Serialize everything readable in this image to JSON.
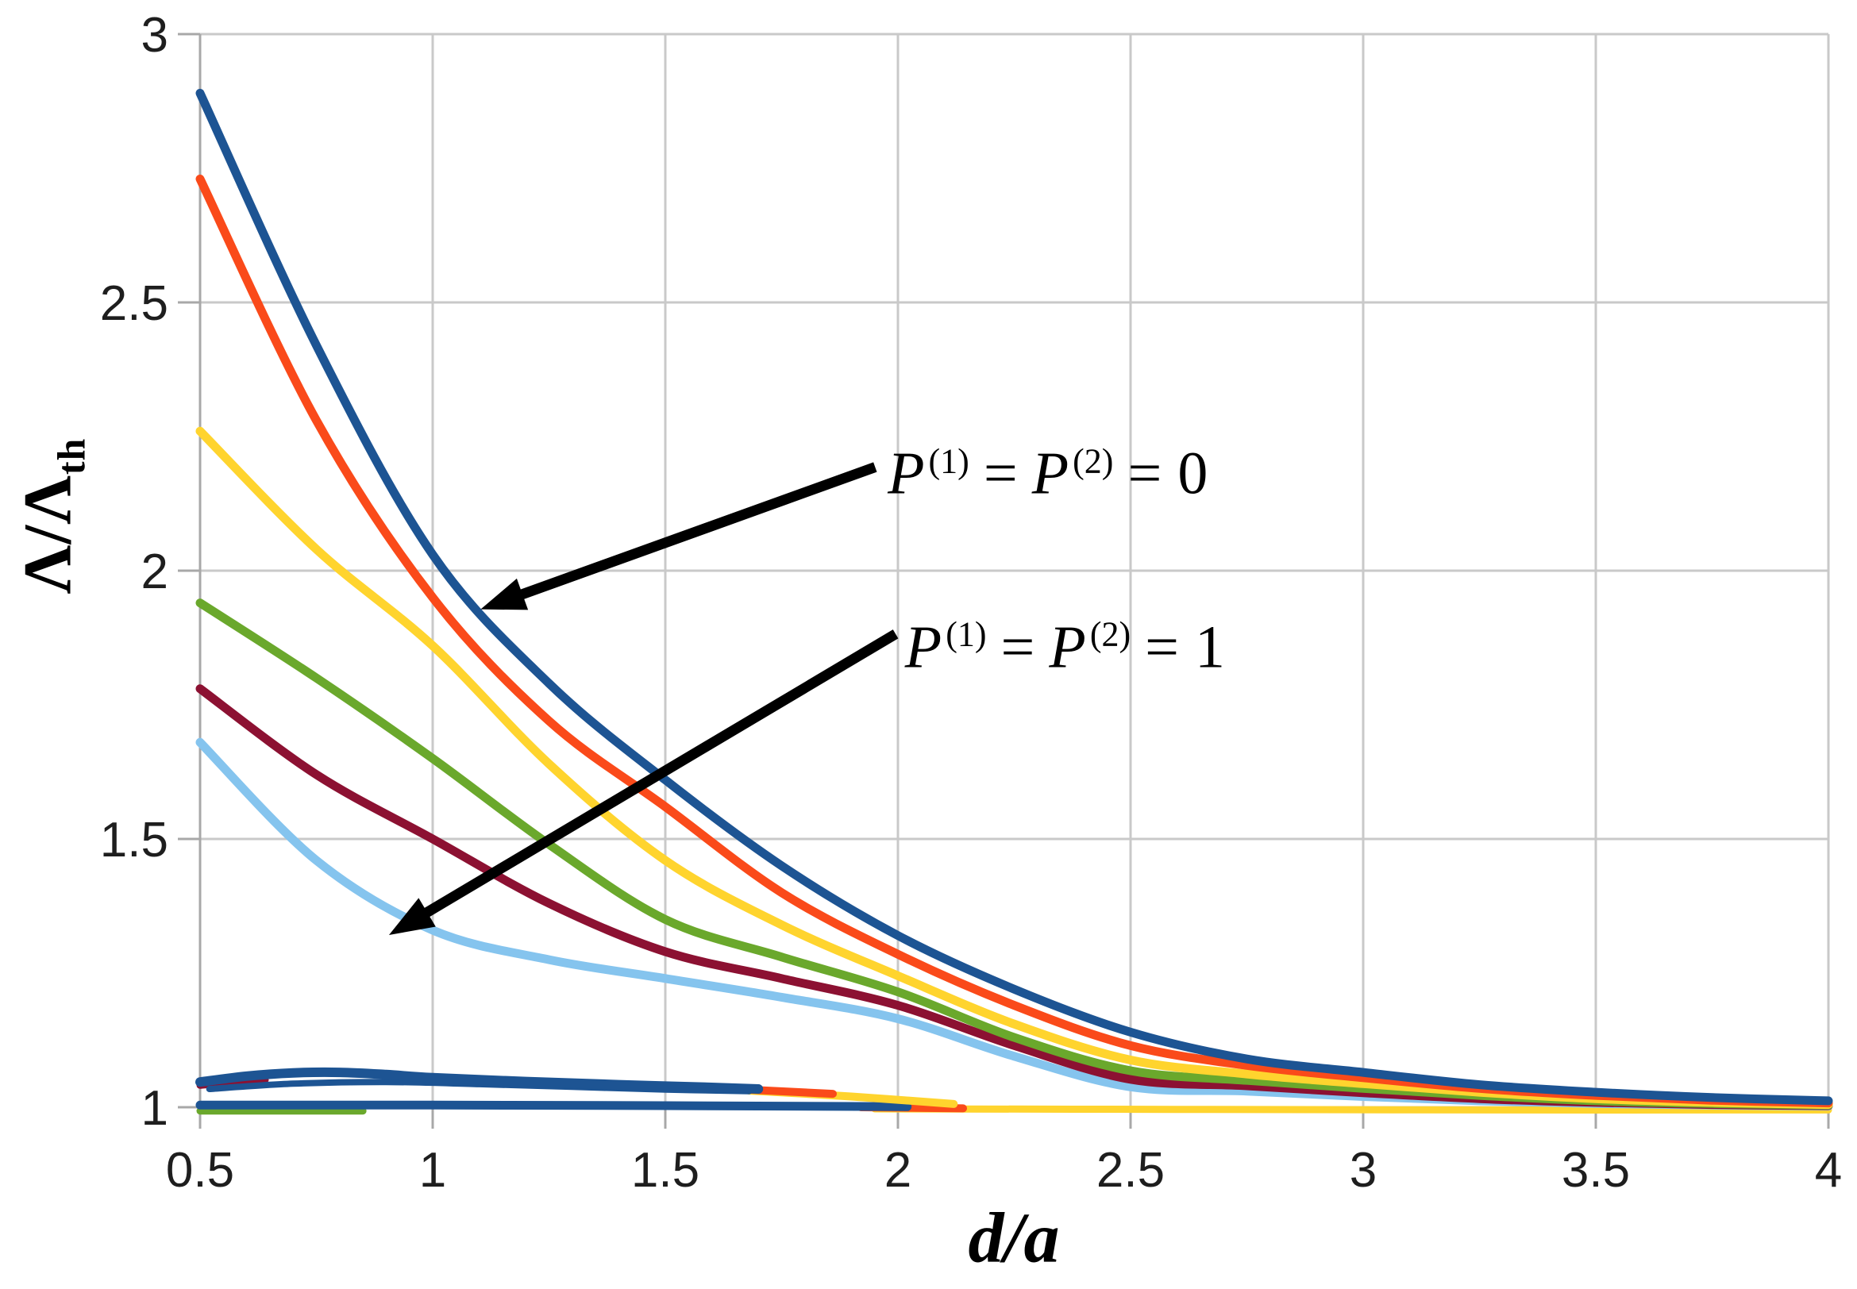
{
  "figure": {
    "background": "#ffffff",
    "description": "Line chart of normalized pump rate Lambda/Lambda_th versus d/a for two parameter families"
  },
  "axes": {
    "x": {
      "label": "d/a",
      "range": [
        0.5,
        4
      ],
      "ticks": [
        0.5,
        1,
        1.5,
        2,
        2.5,
        3,
        3.5,
        4
      ],
      "tick_labels": [
        "0.5",
        "1",
        "1.5",
        "2",
        "2.5",
        "3",
        "3.5",
        "4"
      ]
    },
    "y": {
      "label_main": "Λ/Λ",
      "label_sub": "th",
      "range": [
        1,
        3
      ],
      "ticks": [
        1,
        1.5,
        2,
        2.5,
        3
      ],
      "tick_labels": [
        "1",
        "1.5",
        "2",
        "2.5",
        "3"
      ]
    }
  },
  "palette": {
    "blue": "#1D5493",
    "orange": "#FA4A1A",
    "yellow": "#FFD42E",
    "green": "#6AA82C",
    "darkred": "#8C1132",
    "lightblue": "#85C4EE",
    "grid": "#C9C9C9",
    "axis": "#A8A8A8",
    "tick_text": "#1E1E1E",
    "arrow": "#000000"
  },
  "chart_data": {
    "type": "line",
    "title": "",
    "xlabel": "d/a",
    "ylabel": "Λ/Λ_th",
    "x_range": [
      0.5,
      4
    ],
    "y_range": [
      1,
      3
    ],
    "grid": true,
    "legend": "none",
    "x_samples": [
      0.5,
      0.75,
      1.0,
      1.25,
      1.5,
      1.75,
      2.0,
      2.25,
      2.5,
      2.75,
      3.0,
      3.25,
      3.5,
      3.75,
      4.0
    ],
    "series": [
      {
        "name": "P0-lightblue",
        "family": "P(1)=P(2)=0",
        "color": "lightblue",
        "width": 11,
        "values": [
          1.68,
          1.46,
          1.33,
          1.275,
          1.24,
          1.205,
          1.165,
          1.095,
          1.038,
          1.03,
          1.02,
          1.012,
          1.007,
          1.004,
          1.002
        ]
      },
      {
        "name": "P0-darkred",
        "family": "P(1)=P(2)=0",
        "color": "darkred",
        "width": 11,
        "values": [
          1.78,
          1.62,
          1.5,
          1.38,
          1.29,
          1.24,
          1.19,
          1.115,
          1.052,
          1.04,
          1.027,
          1.016,
          1.009,
          1.005,
          1.003
        ]
      },
      {
        "name": "P0-green",
        "family": "P(1)=P(2)=0",
        "color": "green",
        "width": 11,
        "values": [
          1.94,
          1.8,
          1.65,
          1.49,
          1.35,
          1.28,
          1.215,
          1.13,
          1.068,
          1.05,
          1.035,
          1.022,
          1.012,
          1.007,
          1.004
        ]
      },
      {
        "name": "P0-yellow",
        "family": "P(1)=P(2)=0",
        "color": "yellow",
        "width": 11,
        "values": [
          2.26,
          2.04,
          1.86,
          1.64,
          1.46,
          1.34,
          1.245,
          1.155,
          1.088,
          1.062,
          1.044,
          1.028,
          1.016,
          1.009,
          1.005
        ]
      },
      {
        "name": "P0-orange",
        "family": "P(1)=P(2)=0",
        "color": "orange",
        "width": 11,
        "values": [
          2.73,
          2.28,
          1.95,
          1.72,
          1.56,
          1.4,
          1.285,
          1.19,
          1.115,
          1.078,
          1.055,
          1.035,
          1.022,
          1.013,
          1.008
        ]
      },
      {
        "name": "P0-blue",
        "family": "P(1)=P(2)=0",
        "color": "blue",
        "width": 11,
        "values": [
          2.89,
          2.42,
          2.03,
          1.79,
          1.61,
          1.45,
          1.32,
          1.22,
          1.14,
          1.09,
          1.065,
          1.042,
          1.028,
          1.018,
          1.012
        ]
      }
    ],
    "p1_strokes": [
      {
        "name": "p1-baseline-yellow",
        "family": "P(1)=P(2)=1",
        "color": "yellow",
        "width": 9,
        "x": [
          1.95,
          2.6,
          3.3,
          4.0
        ],
        "v": [
          0.997,
          0.996,
          0.995,
          0.995
        ]
      },
      {
        "name": "p1-baseline-orange",
        "family": "P(1)=P(2)=1",
        "color": "orange",
        "width": 10,
        "x": [
          1.92,
          2.14
        ],
        "v": [
          1.0,
          0.998
        ]
      },
      {
        "name": "p1-baseline-green",
        "family": "P(1)=P(2)=1",
        "color": "green",
        "width": 9,
        "x": [
          0.5,
          0.85
        ],
        "v": [
          0.993,
          0.993
        ]
      },
      {
        "name": "p1-baseline-blue",
        "family": "P(1)=P(2)=1",
        "color": "blue",
        "width": 11,
        "x": [
          0.5,
          1.0,
          1.5,
          2.02
        ],
        "v": [
          1.004,
          1.004,
          1.003,
          1.001
        ]
      },
      {
        "name": "p1-upper-darkred",
        "family": "P(1)=P(2)=1",
        "color": "darkred",
        "width": 9,
        "x": [
          0.5,
          0.64
        ],
        "v": [
          1.041,
          1.051
        ]
      },
      {
        "name": "p1-upper-yellow",
        "family": "P(1)=P(2)=1",
        "color": "yellow",
        "width": 10,
        "x": [
          1.68,
          1.9,
          2.12
        ],
        "v": [
          1.031,
          1.02,
          1.006
        ]
      },
      {
        "name": "p1-upper-orange",
        "family": "P(1)=P(2)=1",
        "color": "orange",
        "width": 10,
        "x": [
          1.58,
          1.86
        ],
        "v": [
          1.037,
          1.025
        ]
      },
      {
        "name": "p1-upper-blue-b",
        "family": "P(1)=P(2)=1",
        "color": "blue",
        "width": 8,
        "x": [
          0.52,
          0.7,
          0.9,
          1.1,
          1.3,
          1.5,
          1.68
        ],
        "v": [
          1.034,
          1.044,
          1.047,
          1.043,
          1.038,
          1.033,
          1.03
        ]
      },
      {
        "name": "p1-upper-blue",
        "family": "P(1)=P(2)=1",
        "color": "blue",
        "width": 12,
        "x": [
          0.5,
          0.6,
          0.7,
          0.8,
          0.9,
          1.0,
          1.2,
          1.4,
          1.6,
          1.7
        ],
        "v": [
          1.047,
          1.058,
          1.064,
          1.065,
          1.061,
          1.055,
          1.048,
          1.042,
          1.037,
          1.034
        ]
      }
    ],
    "annotations": [
      {
        "plain_text": "P(1) = P(2) = 0",
        "parts": {
          "p1": "P",
          "sup1": "(1)",
          "eq1": "=",
          "p2": "P",
          "sup2": "(2)",
          "eq2": "=",
          "val": "0"
        },
        "at": {
          "x": 1.978,
          "y": 2.18
        },
        "arrow": {
          "from": {
            "x": 1.951,
            "y": 2.193
          },
          "to": {
            "x": 1.103,
            "y": 1.928
          }
        }
      },
      {
        "plain_text": "P(1) = P(2) = 1",
        "parts": {
          "p1": "P",
          "sup1": "(1)",
          "eq1": "=",
          "p2": "P",
          "sup2": "(2)",
          "eq2": "=",
          "val": "1"
        },
        "at": {
          "x": 2.015,
          "y": 1.857
        },
        "arrow": {
          "from": {
            "x": 1.995,
            "y": 1.882
          },
          "to": {
            "x": 0.906,
            "y": 1.321
          }
        }
      }
    ]
  }
}
